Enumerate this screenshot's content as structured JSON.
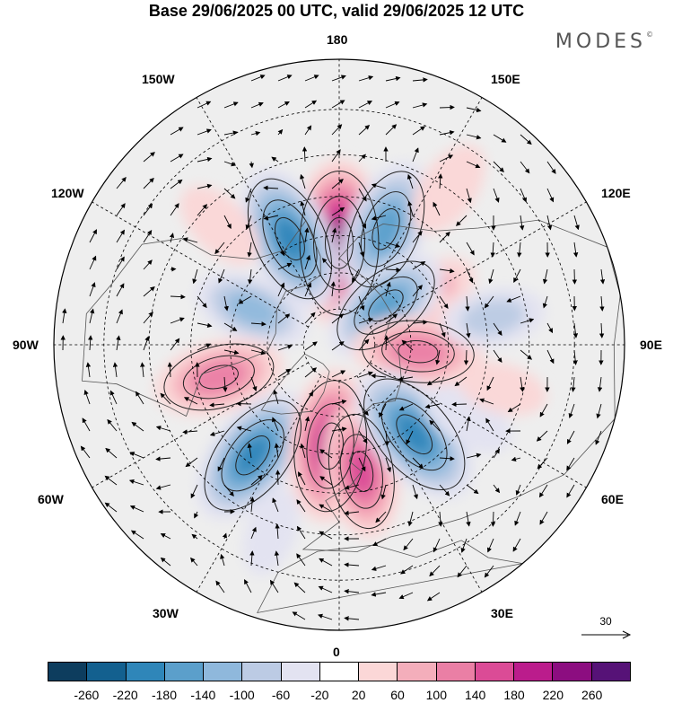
{
  "title": "Base 29/06/2025 00 UTC, valid 29/06/2025 12 UTC",
  "brand": "MODES",
  "brand_mark": "©",
  "longitude_labels": {
    "top": "180",
    "bottom": "0",
    "left": "90W",
    "right": "90E",
    "upper_left_1": "150W",
    "upper_left_2": "120W",
    "lower_left_1": "60W",
    "lower_left_2": "30W",
    "upper_right_1": "150E",
    "upper_right_2": "120E",
    "lower_right_1": "60E",
    "lower_right_2": "30E"
  },
  "vector_reference": {
    "label": "30"
  },
  "colorbar": {
    "colors": [
      "#0d3d5e",
      "#13608f",
      "#2f86b9",
      "#5b9fcb",
      "#8fb8dc",
      "#bccbe4",
      "#e3e3f1",
      "#ffffff",
      "#fbd7d7",
      "#f4aebb",
      "#ea7fa5",
      "#db4b96",
      "#bb1c8c",
      "#8c0d80",
      "#561277"
    ],
    "ticks": [
      "-260",
      "-220",
      "-180",
      "-140",
      "-100",
      "-60",
      "-20",
      "20",
      "60",
      "100",
      "140",
      "180",
      "220",
      "260"
    ]
  },
  "anomaly_centers": [
    {
      "lon": 180,
      "lat": 62,
      "value": 250
    },
    {
      "lon": 158,
      "lat": 56,
      "value": -180
    },
    {
      "lon": -155,
      "lat": 58,
      "value": -200
    },
    {
      "lon": 120,
      "lat": 62,
      "value": 80
    },
    {
      "lon": 108,
      "lat": 72,
      "value": 110
    },
    {
      "lon": 130,
      "lat": 73,
      "value": -160
    },
    {
      "lon": 85,
      "lat": 68,
      "value": 150
    },
    {
      "lon": -112,
      "lat": 64,
      "value": -120
    },
    {
      "lon": -75,
      "lat": 56,
      "value": 150
    },
    {
      "lon": -38,
      "lat": 52,
      "value": -200
    },
    {
      "lon": -5,
      "lat": 62,
      "value": 210
    },
    {
      "lon": 10,
      "lat": 55,
      "value": 160
    },
    {
      "lon": 40,
      "lat": 58,
      "value": -210
    },
    {
      "lon": 60,
      "lat": 50,
      "value": -60
    },
    {
      "lon": -135,
      "lat": 45,
      "value": 60
    },
    {
      "lon": 100,
      "lat": 48,
      "value": -80
    },
    {
      "lon": 145,
      "lat": 40,
      "value": 70
    },
    {
      "lon": -20,
      "lat": 38,
      "value": -40
    },
    {
      "lon": 75,
      "lat": 45,
      "value": 40
    }
  ]
}
